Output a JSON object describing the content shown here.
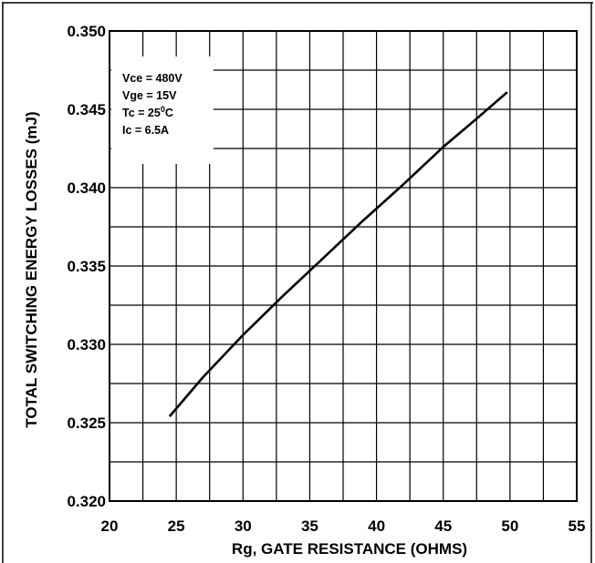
{
  "chart_data": {
    "type": "line",
    "xlabel": "Rg, GATE RESISTANCE (OHMS)",
    "ylabel": "TOTAL SWITCHING ENERGY LOSSES (mJ)",
    "xlim": [
      20,
      55
    ],
    "ylim": [
      0.32,
      0.35
    ],
    "x_ticks": [
      "20",
      "25",
      "30",
      "35",
      "40",
      "45",
      "50",
      "55"
    ],
    "y_ticks": [
      "0.320",
      "0.325",
      "0.330",
      "0.335",
      "0.340",
      "0.345",
      "0.350"
    ],
    "x_tick_values": [
      20,
      25,
      30,
      35,
      40,
      45,
      50,
      55
    ],
    "y_tick_values": [
      0.32,
      0.325,
      0.33,
      0.335,
      0.34,
      0.345,
      0.35
    ],
    "grid": true,
    "series": [
      {
        "x": [
          24.5,
          27,
          30,
          33,
          36,
          39,
          42,
          45,
          47.5,
          49.8
        ],
        "y": [
          0.3254,
          0.3279,
          0.3306,
          0.3331,
          0.3355,
          0.3379,
          0.3402,
          0.3426,
          0.3444,
          0.3461
        ]
      }
    ],
    "annotations": [
      "Vce = 480V",
      "Vge = 15V",
      "Tc = 25",
      "0",
      "C",
      "Ic = 6.5A"
    ],
    "annotation_placement": "top-left"
  }
}
